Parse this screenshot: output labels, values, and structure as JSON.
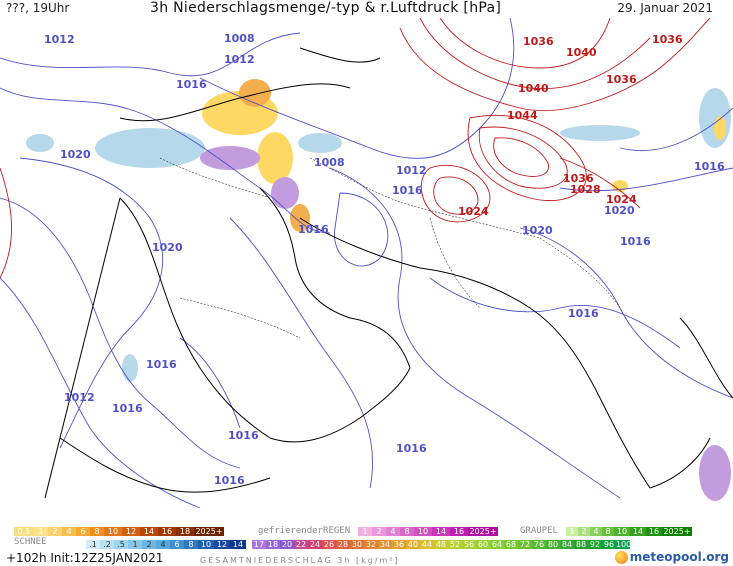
{
  "header": {
    "left": "???, 19Uhr",
    "title": "3h Niederschlagsmenge/-typ & r.Luftdruck [hPa]",
    "date": "29. Januar 2021"
  },
  "colors": {
    "low_isobar": "#5050c8",
    "high_isobar": "#c01818",
    "coast": "#000000",
    "precip": [
      "#aad2e8",
      "#ffd24a",
      "#f4a030",
      "#b88bd8",
      "#e070c8"
    ]
  },
  "isobar_labels": [
    {
      "text": "1012",
      "kind": "low"
    },
    {
      "text": "1008",
      "kind": "low"
    },
    {
      "text": "1012",
      "kind": "low"
    },
    {
      "text": "1016",
      "kind": "low"
    },
    {
      "text": "1020",
      "kind": "low"
    },
    {
      "text": "1008",
      "kind": "low"
    },
    {
      "text": "1012",
      "kind": "low"
    },
    {
      "text": "1016",
      "kind": "low"
    },
    {
      "text": "1016",
      "kind": "low"
    },
    {
      "text": "1020",
      "kind": "low"
    },
    {
      "text": "1020",
      "kind": "low"
    },
    {
      "text": "1016",
      "kind": "low"
    },
    {
      "text": "1016",
      "kind": "low"
    },
    {
      "text": "1016",
      "kind": "low"
    },
    {
      "text": "1012",
      "kind": "low"
    },
    {
      "text": "1016",
      "kind": "low"
    },
    {
      "text": "1016",
      "kind": "low"
    },
    {
      "text": "1016",
      "kind": "low"
    },
    {
      "text": "1016",
      "kind": "low"
    },
    {
      "text": "1016",
      "kind": "low"
    },
    {
      "text": "1020",
      "kind": "low"
    },
    {
      "text": "1036",
      "kind": "high"
    },
    {
      "text": "1040",
      "kind": "high"
    },
    {
      "text": "1036",
      "kind": "high"
    },
    {
      "text": "1036",
      "kind": "high"
    },
    {
      "text": "1040",
      "kind": "high"
    },
    {
      "text": "1044",
      "kind": "high"
    },
    {
      "text": "1036",
      "kind": "high"
    },
    {
      "text": "1028",
      "kind": "high"
    },
    {
      "text": "1024",
      "kind": "high"
    },
    {
      "text": "1024",
      "kind": "high"
    }
  ],
  "legend": {
    "rain_scale": [
      "1",
      "2",
      "4",
      "6",
      "8",
      "10",
      "12",
      "14",
      "16",
      "18",
      "2025+"
    ],
    "rain_first": "0.1",
    "freezing_label": "gefrierenderREGEN",
    "freezing_scale": [
      "1",
      "2",
      "4",
      "8",
      "10",
      "14",
      "16",
      "2025+"
    ],
    "graupel_label": "GRAUPEL",
    "graupel_scale": [
      "1",
      "2",
      "4",
      "8",
      "10",
      "14",
      "16",
      "2025+"
    ],
    "snow_label": "SCHNEE",
    "snow_scale": [
      ".1",
      ".2",
      ".5",
      "1",
      "2",
      "4",
      "6",
      "8",
      "10",
      "12",
      "14"
    ],
    "total_scale": [
      "17",
      "18",
      "20",
      "22",
      "24",
      "26",
      "28",
      "30",
      "32",
      "34",
      "36",
      "40",
      "44",
      "48",
      "52",
      "56",
      "60",
      "64",
      "68",
      "72",
      "76",
      "80",
      "84",
      "88",
      "92",
      "96",
      "100"
    ],
    "total_label": "GESAMTNIEDERSCHLAG 3h [kg/m²]",
    "init": "+102h  Init:12Z25JAN2021",
    "brand": "meteopool.org"
  }
}
